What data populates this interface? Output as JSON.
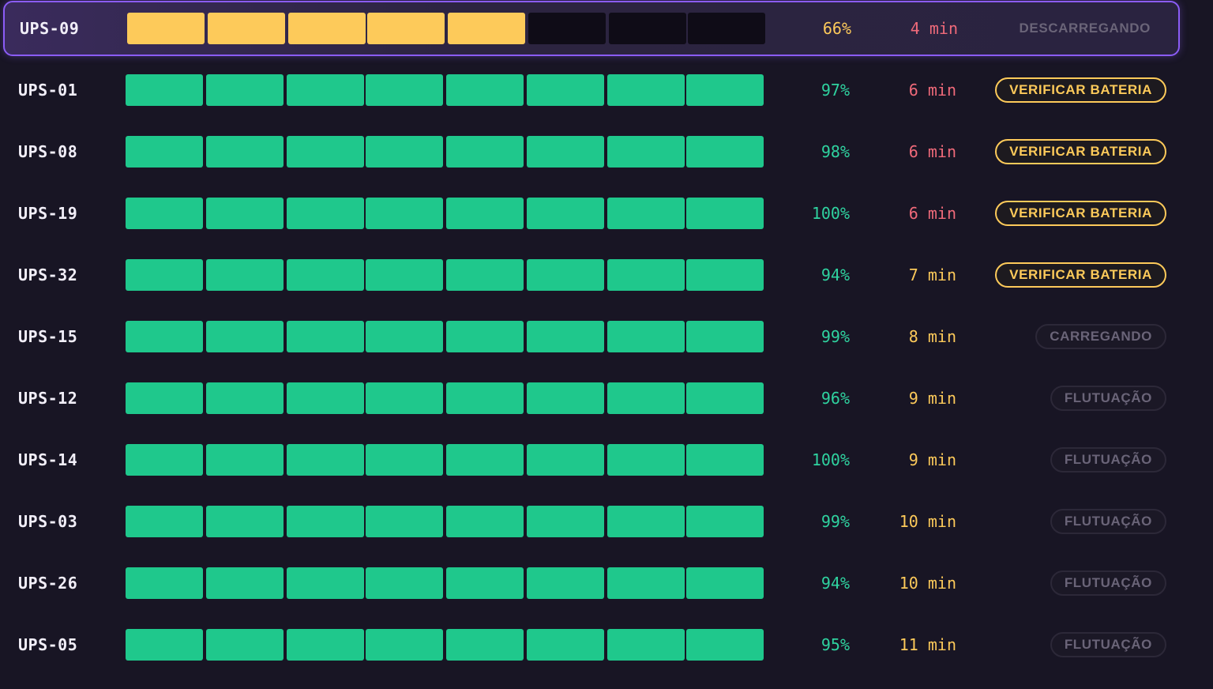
{
  "colors": {
    "charged_cell": "#1fc88c",
    "discharging_cell": "#fdca5a",
    "empty_cell": "#0f0c17",
    "pct_green": "#2fd3a0",
    "pct_amber": "#fdca5a",
    "runtime_red": "#f06a7a",
    "runtime_amber": "#fdca5a",
    "selected_border": "#8b5cf6"
  },
  "cells_per_row": 8,
  "rows": [
    {
      "name": "UPS-09",
      "cells_filled": 5,
      "cell_state": "discharging",
      "pct": "66%",
      "pct_color": "amber",
      "runtime": "4 min",
      "runtime_color": "red",
      "status": "DESCARREGANDO",
      "status_style": "muted-flat",
      "selected": true
    },
    {
      "name": "UPS-01",
      "cells_filled": 8,
      "cell_state": "charged",
      "pct": "97%",
      "pct_color": "green",
      "runtime": "6 min",
      "runtime_color": "red",
      "status": "VERIFICAR BATERIA",
      "status_style": "warn",
      "selected": false
    },
    {
      "name": "UPS-08",
      "cells_filled": 8,
      "cell_state": "charged",
      "pct": "98%",
      "pct_color": "green",
      "runtime": "6 min",
      "runtime_color": "red",
      "status": "VERIFICAR BATERIA",
      "status_style": "warn",
      "selected": false
    },
    {
      "name": "UPS-19",
      "cells_filled": 8,
      "cell_state": "charged",
      "pct": "100%",
      "pct_color": "green",
      "runtime": "6 min",
      "runtime_color": "red",
      "status": "VERIFICAR BATERIA",
      "status_style": "warn",
      "selected": false
    },
    {
      "name": "UPS-32",
      "cells_filled": 8,
      "cell_state": "charged",
      "pct": "94%",
      "pct_color": "green",
      "runtime": "7 min",
      "runtime_color": "amber",
      "status": "VERIFICAR BATERIA",
      "status_style": "warn",
      "selected": false
    },
    {
      "name": "UPS-15",
      "cells_filled": 8,
      "cell_state": "charged",
      "pct": "99%",
      "pct_color": "green",
      "runtime": "8 min",
      "runtime_color": "amber",
      "status": "CARREGANDO",
      "status_style": "muted",
      "selected": false
    },
    {
      "name": "UPS-12",
      "cells_filled": 8,
      "cell_state": "charged",
      "pct": "96%",
      "pct_color": "green",
      "runtime": "9 min",
      "runtime_color": "amber",
      "status": "FLUTUAÇÃO",
      "status_style": "muted",
      "selected": false
    },
    {
      "name": "UPS-14",
      "cells_filled": 8,
      "cell_state": "charged",
      "pct": "100%",
      "pct_color": "green",
      "runtime": "9 min",
      "runtime_color": "amber",
      "status": "FLUTUAÇÃO",
      "status_style": "muted",
      "selected": false
    },
    {
      "name": "UPS-03",
      "cells_filled": 8,
      "cell_state": "charged",
      "pct": "99%",
      "pct_color": "green",
      "runtime": "10 min",
      "runtime_color": "amber",
      "status": "FLUTUAÇÃO",
      "status_style": "muted",
      "selected": false
    },
    {
      "name": "UPS-26",
      "cells_filled": 8,
      "cell_state": "charged",
      "pct": "94%",
      "pct_color": "green",
      "runtime": "10 min",
      "runtime_color": "amber",
      "status": "FLUTUAÇÃO",
      "status_style": "muted",
      "selected": false
    },
    {
      "name": "UPS-05",
      "cells_filled": 8,
      "cell_state": "charged",
      "pct": "95%",
      "pct_color": "green",
      "runtime": "11 min",
      "runtime_color": "amber",
      "status": "FLUTUAÇÃO",
      "status_style": "muted",
      "selected": false
    }
  ]
}
